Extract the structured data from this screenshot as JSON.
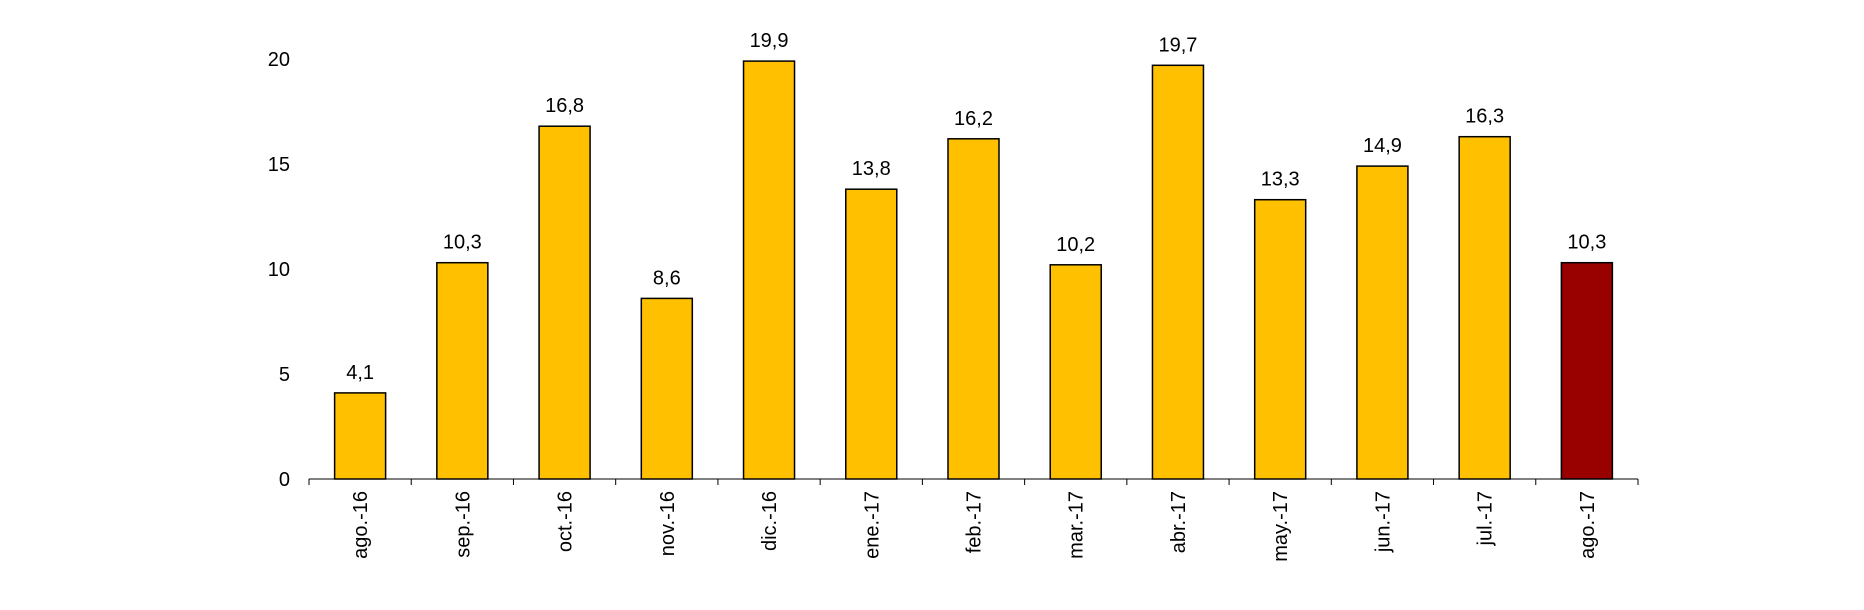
{
  "chart_data": {
    "type": "bar",
    "categories": [
      "ago.-16",
      "sep.-16",
      "oct.-16",
      "nov.-16",
      "dic.-16",
      "ene.-17",
      "feb.-17",
      "mar.-17",
      "abr.-17",
      "may.-17",
      "jun.-17",
      "jul.-17",
      "ago.-17"
    ],
    "values": [
      4.1,
      10.3,
      16.8,
      8.6,
      19.9,
      13.8,
      16.2,
      10.2,
      19.7,
      13.3,
      14.9,
      16.3,
      10.3
    ],
    "data_labels": [
      "4,1",
      "10,3",
      "16,8",
      "8,6",
      "19,9",
      "13,8",
      "16,2",
      "10,2",
      "19,7",
      "13,3",
      "14,9",
      "16,3",
      "10,3"
    ],
    "y_ticks": [
      0,
      5,
      10,
      15,
      20
    ],
    "ylim": [
      0,
      20
    ],
    "grid": false,
    "legend": false,
    "title": "",
    "xlabel": "",
    "ylabel": "",
    "colors": {
      "bar": "#FFC000",
      "highlight_bar": "#990000",
      "bar_stroke": "#000000",
      "axis": "#000000"
    },
    "highlight_index": 12
  }
}
